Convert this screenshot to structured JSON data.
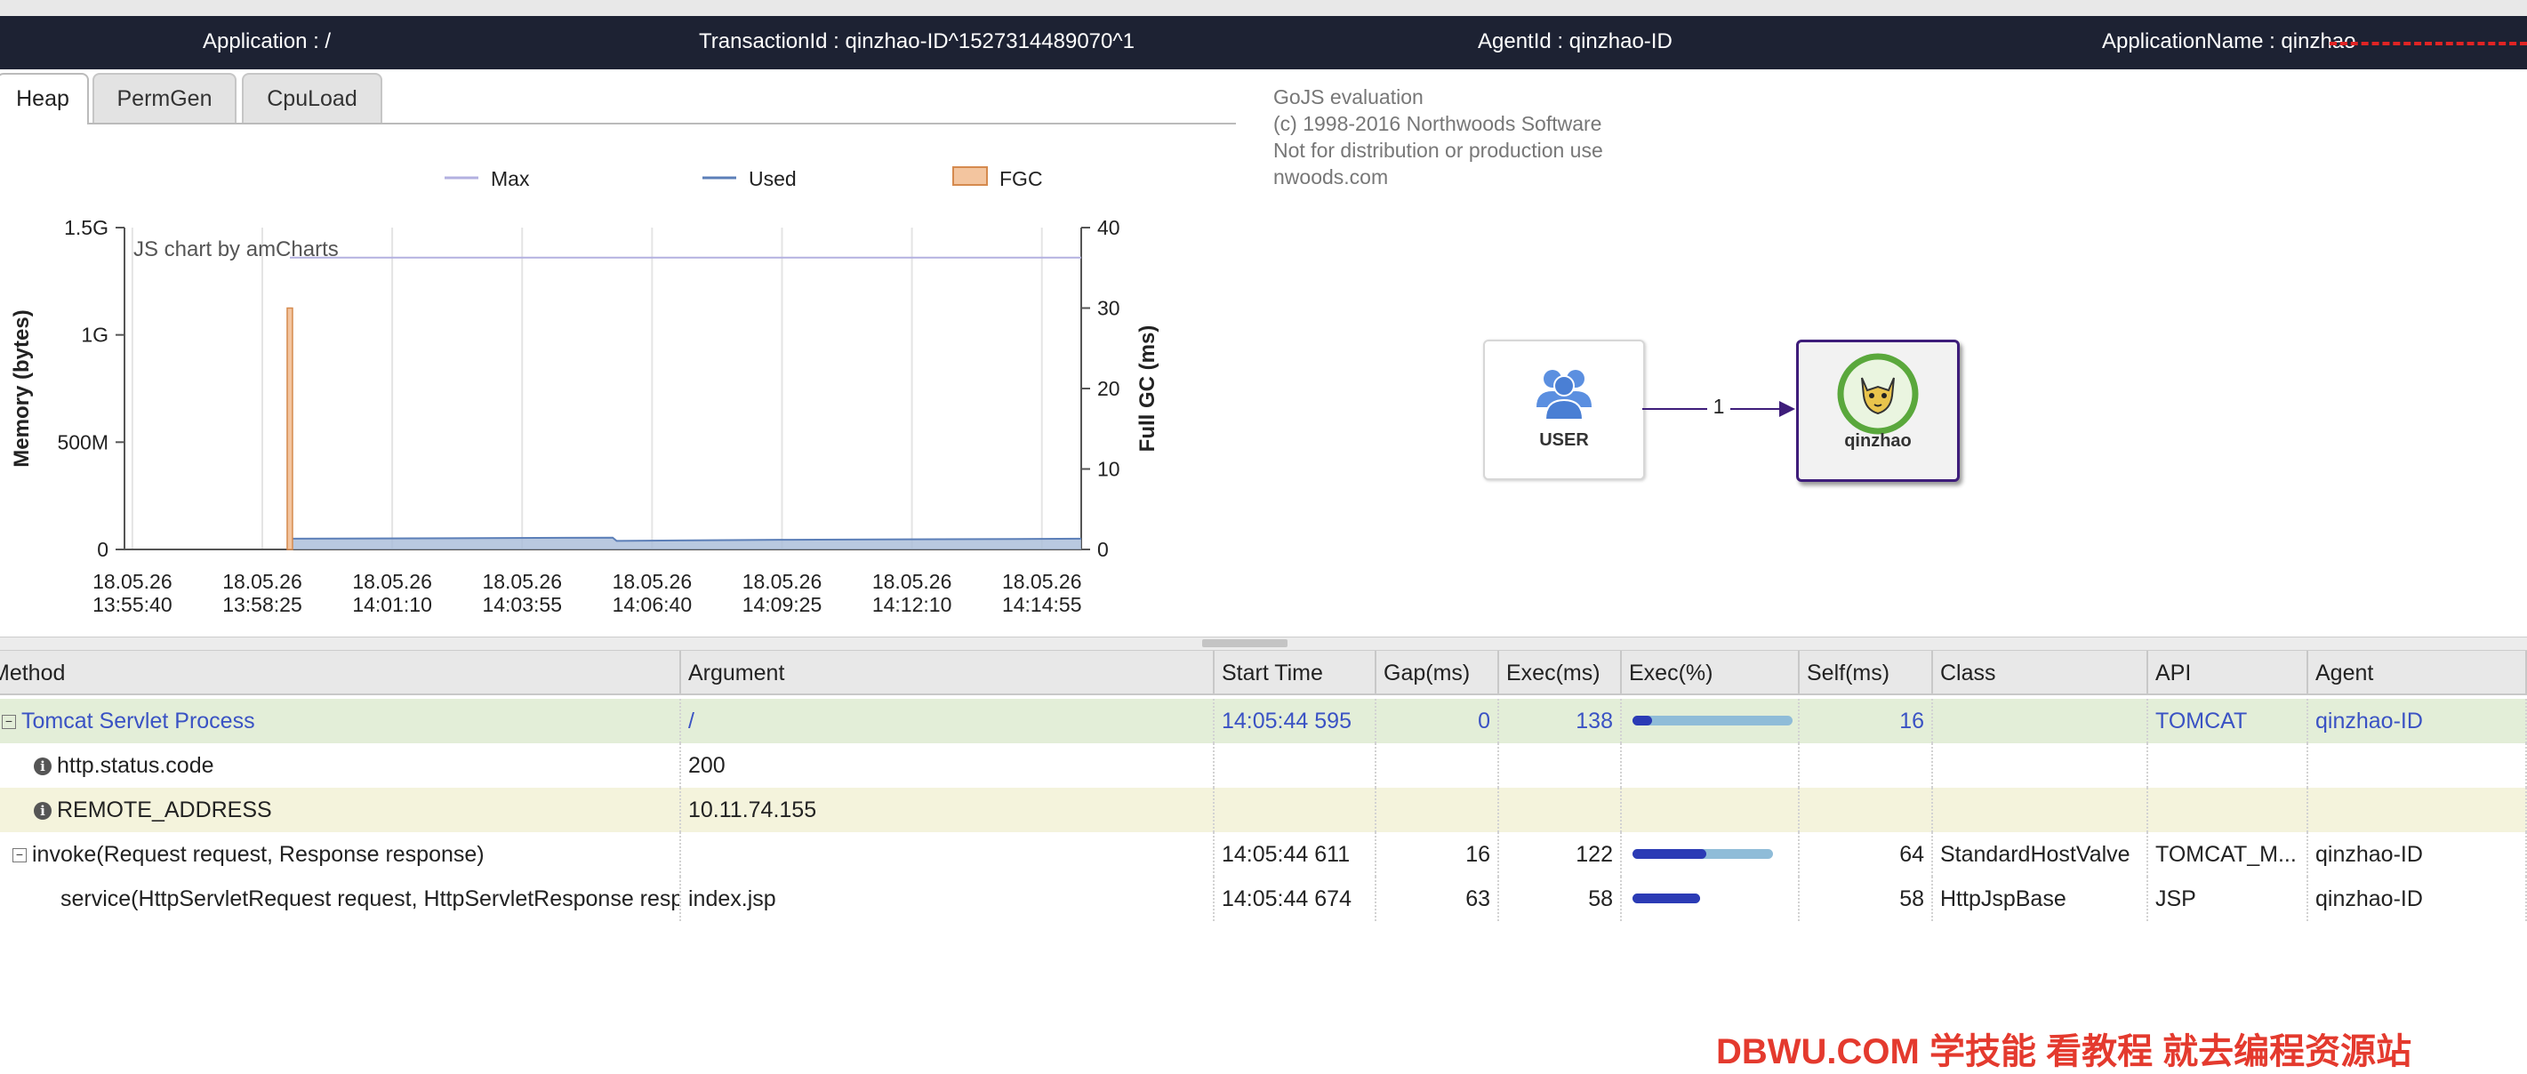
{
  "header": {
    "application": "Application : /",
    "transaction_id": "TransactionId : qinzhao-ID^1527314489070^1",
    "agent_id": "AgentId : qinzhao-ID",
    "application_name": "ApplicationName : qinzhao"
  },
  "tabs": [
    "Heap",
    "PermGen",
    "CpuLoad"
  ],
  "active_tab": "Heap",
  "chart_data": {
    "type": "line",
    "legend": [
      "Max",
      "Used",
      "FGC"
    ],
    "legend_position": "top",
    "watermark": "JS chart by amCharts",
    "ylabel": "Memory (bytes)",
    "y2label": "Full GC (ms)",
    "y_ticks": [
      "0",
      "500M",
      "1G",
      "1.5G"
    ],
    "y2_ticks": [
      "0",
      "10",
      "20",
      "30",
      "40"
    ],
    "x_ticks": [
      [
        "18.05.26",
        "13:55:40"
      ],
      [
        "18.05.26",
        "13:58:25"
      ],
      [
        "18.05.26",
        "14:01:10"
      ],
      [
        "18.05.26",
        "14:03:55"
      ],
      [
        "18.05.26",
        "14:06:40"
      ],
      [
        "18.05.26",
        "14:09:25"
      ],
      [
        "18.05.26",
        "14:12:10"
      ],
      [
        "18.05.26",
        "14:14:55"
      ]
    ],
    "ylim_gb": [
      0,
      1.5
    ],
    "y2lim": [
      0,
      40
    ],
    "x_range_sec": [
      -10,
      1205
    ],
    "series": [
      {
        "name": "Max",
        "color": "#b3b1e0",
        "x_sec": [
          200,
          1205
        ],
        "y_gb": [
          1.36,
          1.36
        ]
      },
      {
        "name": "Used",
        "color": "#5c7fb8",
        "x_sec": [
          200,
          610,
          615,
          820,
          1205
        ],
        "y_gb": [
          0.05,
          0.055,
          0.04,
          0.045,
          0.05
        ]
      },
      {
        "name": "FGC",
        "color": "#f3c59f",
        "bars": [
          {
            "x_sec": 200,
            "ms": 30
          }
        ]
      }
    ]
  },
  "gojs": {
    "lines": [
      "GoJS evaluation",
      "(c) 1998-2016 Northwoods Software",
      "Not for distribution or production use",
      "nwoods.com"
    ],
    "nodes": [
      {
        "label": "USER",
        "icon": "users-icon"
      },
      {
        "label": "qinzhao",
        "icon": "tomcat-icon"
      }
    ],
    "edge_label": "1"
  },
  "table": {
    "columns": [
      "Method",
      "Argument",
      "Start Time",
      "Gap(ms)",
      "Exec(ms)",
      "Exec(%)",
      "Self(ms)",
      "Class",
      "API",
      "Agent"
    ],
    "rows": [
      {
        "method": "Tomcat Servlet Process",
        "argument": "/",
        "start": "14:05:44 595",
        "gap": "0",
        "exec": "138",
        "exec_pct": 1.0,
        "self_pct": 0.12,
        "self": "16",
        "class": "",
        "api": "TOMCAT",
        "agent": "qinzhao-ID"
      },
      {
        "method": "http.status.code",
        "argument": "200",
        "start": "",
        "gap": "",
        "exec": "",
        "self": "",
        "class": "",
        "api": "",
        "agent": ""
      },
      {
        "method": "REMOTE_ADDRESS",
        "argument": "10.11.74.155",
        "start": "",
        "gap": "",
        "exec": "",
        "self": "",
        "class": "",
        "api": "",
        "agent": ""
      },
      {
        "method": "invoke(Request request, Response response)",
        "argument": "",
        "start": "14:05:44 611",
        "gap": "16",
        "exec": "122",
        "exec_pct": 0.88,
        "self_pct": 0.46,
        "self": "64",
        "class": "StandardHostValve",
        "api": "TOMCAT_M...",
        "agent": "qinzhao-ID"
      },
      {
        "method": "service(HttpServletRequest request, HttpServletResponse resp",
        "argument": "index.jsp",
        "start": "14:05:44 674",
        "gap": "63",
        "exec": "58",
        "exec_pct": 0.42,
        "self_pct": 0.42,
        "self": "58",
        "class": "HttpJspBase",
        "api": "JSP",
        "agent": "qinzhao-ID"
      }
    ]
  },
  "watermark_text": "DBWU.COM 学技能 看教程 就去编程资源站"
}
